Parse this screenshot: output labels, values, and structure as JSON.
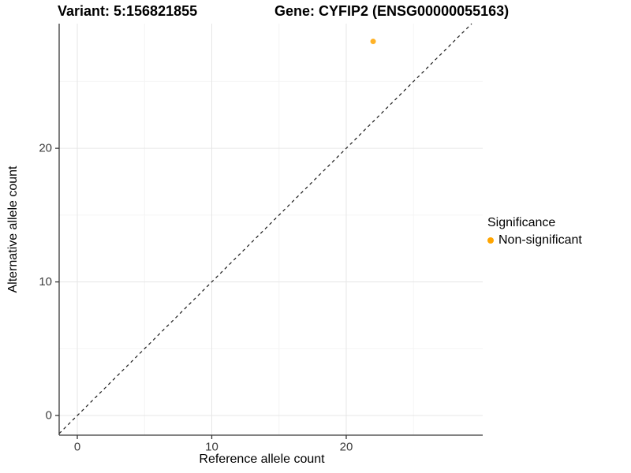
{
  "title": {
    "variant": "Variant: 5:156821855",
    "gene": "Gene: CYFIP2 (ENSG00000055163)"
  },
  "axes": {
    "x_label": "Reference allele count",
    "y_label": "Alternative allele count"
  },
  "legend": {
    "title": "Significance",
    "items": [
      {
        "label": "Non-significant",
        "color": "#FFA500"
      }
    ]
  },
  "colors": {
    "point": "#FFA500",
    "axis_line": "#383838",
    "tick_label": "#3c3c3c",
    "major_grid": "#e6e6e6",
    "minor_grid": "#f4f4f4",
    "identity_line": "#1a1a1a",
    "background": "#ffffff"
  },
  "chart_data": {
    "type": "scatter",
    "title": "Variant: 5:156821855   Gene: CYFIP2 (ENSG00000055163)",
    "xlabel": "Reference allele count",
    "ylabel": "Alternative allele count",
    "xlim": [
      -1.35,
      30.15
    ],
    "ylim": [
      -1.47,
      29.33
    ],
    "x_ticks": [
      0,
      10,
      20
    ],
    "y_ticks": [
      0,
      10,
      20
    ],
    "x_minor": [
      5,
      15,
      25
    ],
    "y_minor": [
      5,
      15,
      25
    ],
    "grid": true,
    "legend_position": "right",
    "series": [
      {
        "name": "Non-significant",
        "color": "#FFA500",
        "points": [
          {
            "x": 22,
            "y": 28
          }
        ]
      }
    ],
    "reference_line": {
      "kind": "identity",
      "style": "dashed",
      "color": "#1a1a1a"
    }
  }
}
